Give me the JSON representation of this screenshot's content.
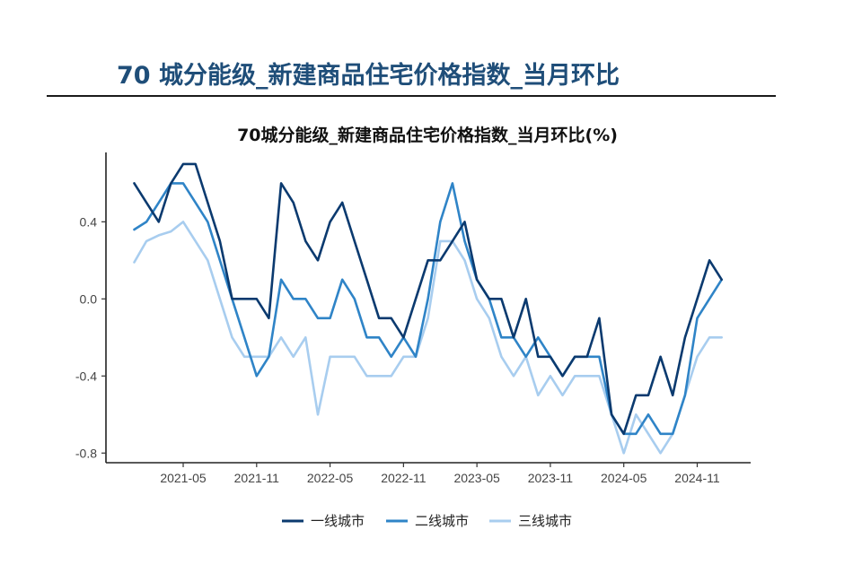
{
  "header": {
    "title": "70 城分能级_新建商品住宅价格指数_当月环比"
  },
  "colors": {
    "tier1": "#0b3a6f",
    "tier2": "#2f84c7",
    "tier3": "#a8cdef",
    "header_title": "#1f4e79"
  },
  "chart_data": {
    "type": "line",
    "title": "70城分能级_新建商品住宅价格指数_当月环比(%)",
    "xlabel": "",
    "ylabel": "",
    "ylim": [
      -0.85,
      0.76
    ],
    "yticks": [
      0.4,
      0.0,
      -0.4,
      -0.8
    ],
    "ytick_labels": [
      "0.4",
      "0.0",
      "-0.4",
      "-0.8"
    ],
    "x": [
      "2021-01",
      "2021-02",
      "2021-03",
      "2021-04",
      "2021-05",
      "2021-06",
      "2021-07",
      "2021-08",
      "2021-09",
      "2021-10",
      "2021-11",
      "2021-12",
      "2022-01",
      "2022-02",
      "2022-03",
      "2022-04",
      "2022-05",
      "2022-06",
      "2022-07",
      "2022-08",
      "2022-09",
      "2022-10",
      "2022-11",
      "2022-12",
      "2023-01",
      "2023-02",
      "2023-03",
      "2023-04",
      "2023-05",
      "2023-06",
      "2023-07",
      "2023-08",
      "2023-09",
      "2023-10",
      "2023-11",
      "2023-12",
      "2024-01",
      "2024-02",
      "2024-03",
      "2024-04",
      "2024-05",
      "2024-06",
      "2024-07",
      "2024-08",
      "2024-09",
      "2024-10",
      "2024-11",
      "2024-12",
      "2025-01",
      "2025-02"
    ],
    "xticks": [
      "2021-05",
      "2021-11",
      "2022-05",
      "2022-11",
      "2023-05",
      "2023-11",
      "2024-05",
      "2024-11"
    ],
    "legend_position": "bottom",
    "grid": false,
    "series": [
      {
        "name": "一线城市",
        "color": "#0b3a6f",
        "values": [
          0.6,
          0.5,
          0.4,
          0.6,
          0.7,
          0.7,
          0.5,
          0.3,
          0.0,
          0.0,
          0.0,
          -0.1,
          0.6,
          0.5,
          0.3,
          0.2,
          0.4,
          0.5,
          0.3,
          0.1,
          -0.1,
          -0.1,
          -0.2,
          0.0,
          0.2,
          0.2,
          0.3,
          0.4,
          0.1,
          0.0,
          0.0,
          -0.2,
          0.0,
          -0.3,
          -0.3,
          -0.4,
          -0.3,
          -0.3,
          -0.1,
          -0.6,
          -0.7,
          -0.5,
          -0.5,
          -0.3,
          -0.5,
          -0.2,
          0.0,
          0.2,
          0.1,
          null
        ]
      },
      {
        "name": "二线城市",
        "color": "#2f84c7",
        "values": [
          0.36,
          0.4,
          0.5,
          0.6,
          0.6,
          0.5,
          0.4,
          0.2,
          0.0,
          -0.2,
          -0.4,
          -0.3,
          0.1,
          0.0,
          0.0,
          -0.1,
          -0.1,
          0.1,
          0.0,
          -0.2,
          -0.2,
          -0.3,
          -0.2,
          -0.3,
          0.0,
          0.4,
          0.6,
          0.3,
          0.1,
          0.0,
          -0.2,
          -0.2,
          -0.3,
          -0.2,
          -0.3,
          -0.4,
          -0.3,
          -0.3,
          -0.3,
          -0.6,
          -0.7,
          -0.7,
          -0.6,
          -0.7,
          -0.7,
          -0.5,
          -0.1,
          0.0,
          0.1,
          null
        ]
      },
      {
        "name": "三线城市",
        "color": "#a8cdef",
        "values": [
          0.19,
          0.3,
          0.33,
          0.35,
          0.4,
          0.3,
          0.2,
          0.0,
          -0.2,
          -0.3,
          -0.3,
          -0.3,
          -0.2,
          -0.3,
          -0.2,
          -0.6,
          -0.3,
          -0.3,
          -0.3,
          -0.4,
          -0.4,
          -0.4,
          -0.3,
          -0.3,
          -0.1,
          0.3,
          0.3,
          0.2,
          0.0,
          -0.1,
          -0.3,
          -0.4,
          -0.3,
          -0.5,
          -0.4,
          -0.5,
          -0.4,
          -0.4,
          -0.4,
          -0.6,
          -0.8,
          -0.6,
          -0.7,
          -0.8,
          -0.7,
          -0.5,
          -0.3,
          -0.2,
          -0.2,
          null
        ]
      }
    ]
  }
}
